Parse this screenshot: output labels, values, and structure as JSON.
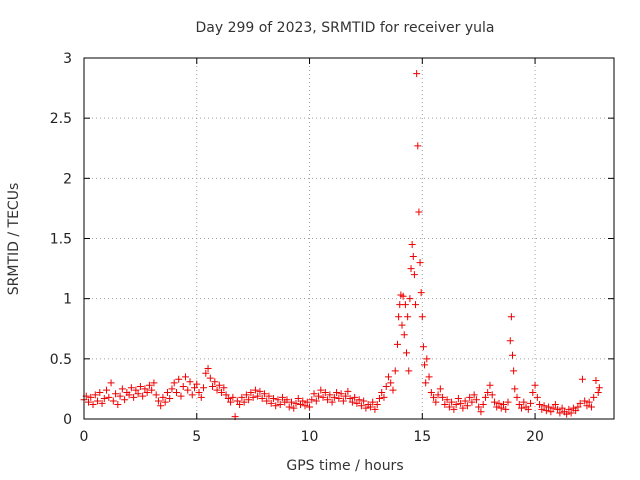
{
  "chart_data": {
    "type": "scatter",
    "title": "Day 299 of 2023, SRMTID for receiver yula",
    "xlabel": "GPS time / hours",
    "ylabel": "SRMTID / TECUs",
    "xlim": [
      0,
      23.5
    ],
    "ylim": [
      0,
      3
    ],
    "xticks": [
      "0",
      "5",
      "10",
      "15",
      "20"
    ],
    "xtick_values": [
      0,
      5,
      10,
      15,
      20
    ],
    "yticks": [
      "0",
      "0.5",
      "1",
      "1.5",
      "2",
      "2.5",
      "3"
    ],
    "ytick_values": [
      0,
      0.5,
      1,
      1.5,
      2,
      2.5,
      3
    ],
    "grid": true,
    "marker": "+",
    "colors": {
      "series": "#ee0000",
      "axis": "#000000",
      "grid": "#a0a0a0"
    },
    "series": [
      {
        "name": "SRMTID",
        "points": [
          [
            0.0,
            0.16
          ],
          [
            0.1,
            0.19
          ],
          [
            0.2,
            0.14
          ],
          [
            0.3,
            0.18
          ],
          [
            0.4,
            0.12
          ],
          [
            0.5,
            0.2
          ],
          [
            0.6,
            0.15
          ],
          [
            0.7,
            0.22
          ],
          [
            0.8,
            0.13
          ],
          [
            0.9,
            0.17
          ],
          [
            1.0,
            0.24
          ],
          [
            1.1,
            0.18
          ],
          [
            1.2,
            0.3
          ],
          [
            1.3,
            0.15
          ],
          [
            1.4,
            0.21
          ],
          [
            1.5,
            0.12
          ],
          [
            1.6,
            0.19
          ],
          [
            1.7,
            0.25
          ],
          [
            1.8,
            0.16
          ],
          [
            1.9,
            0.22
          ],
          [
            2.0,
            0.2
          ],
          [
            2.1,
            0.26
          ],
          [
            2.2,
            0.18
          ],
          [
            2.3,
            0.24
          ],
          [
            2.4,
            0.21
          ],
          [
            2.5,
            0.27
          ],
          [
            2.6,
            0.19
          ],
          [
            2.7,
            0.25
          ],
          [
            2.8,
            0.22
          ],
          [
            2.9,
            0.28
          ],
          [
            3.0,
            0.24
          ],
          [
            3.1,
            0.3
          ],
          [
            3.2,
            0.2
          ],
          [
            3.3,
            0.15
          ],
          [
            3.4,
            0.11
          ],
          [
            3.5,
            0.18
          ],
          [
            3.6,
            0.14
          ],
          [
            3.7,
            0.22
          ],
          [
            3.8,
            0.17
          ],
          [
            3.9,
            0.25
          ],
          [
            4.0,
            0.3
          ],
          [
            4.1,
            0.22
          ],
          [
            4.2,
            0.33
          ],
          [
            4.3,
            0.19
          ],
          [
            4.4,
            0.27
          ],
          [
            4.5,
            0.35
          ],
          [
            4.6,
            0.24
          ],
          [
            4.7,
            0.31
          ],
          [
            4.8,
            0.2
          ],
          [
            4.9,
            0.26
          ],
          [
            5.0,
            0.29
          ],
          [
            5.1,
            0.22
          ],
          [
            5.2,
            0.18
          ],
          [
            5.3,
            0.26
          ],
          [
            5.4,
            0.38
          ],
          [
            5.5,
            0.42
          ],
          [
            5.6,
            0.34
          ],
          [
            5.7,
            0.27
          ],
          [
            5.8,
            0.31
          ],
          [
            5.9,
            0.24
          ],
          [
            6.0,
            0.28
          ],
          [
            6.1,
            0.22
          ],
          [
            6.2,
            0.26
          ],
          [
            6.3,
            0.2
          ],
          [
            6.4,
            0.17
          ],
          [
            6.5,
            0.14
          ],
          [
            6.6,
            0.18
          ],
          [
            6.7,
            0.02
          ],
          [
            6.8,
            0.15
          ],
          [
            6.9,
            0.12
          ],
          [
            7.0,
            0.18
          ],
          [
            7.1,
            0.14
          ],
          [
            7.2,
            0.2
          ],
          [
            7.3,
            0.16
          ],
          [
            7.4,
            0.22
          ],
          [
            7.5,
            0.18
          ],
          [
            7.6,
            0.24
          ],
          [
            7.7,
            0.19
          ],
          [
            7.8,
            0.23
          ],
          [
            7.9,
            0.17
          ],
          [
            8.0,
            0.21
          ],
          [
            8.1,
            0.15
          ],
          [
            8.2,
            0.19
          ],
          [
            8.3,
            0.13
          ],
          [
            8.4,
            0.17
          ],
          [
            8.5,
            0.11
          ],
          [
            8.6,
            0.16
          ],
          [
            8.7,
            0.12
          ],
          [
            8.8,
            0.18
          ],
          [
            8.9,
            0.14
          ],
          [
            9.0,
            0.16
          ],
          [
            9.1,
            0.1
          ],
          [
            9.2,
            0.14
          ],
          [
            9.3,
            0.09
          ],
          [
            9.4,
            0.13
          ],
          [
            9.5,
            0.17
          ],
          [
            9.6,
            0.12
          ],
          [
            9.7,
            0.15
          ],
          [
            9.8,
            0.11
          ],
          [
            9.9,
            0.14
          ],
          [
            10.0,
            0.1
          ],
          [
            10.1,
            0.16
          ],
          [
            10.2,
            0.21
          ],
          [
            10.3,
            0.15
          ],
          [
            10.4,
            0.19
          ],
          [
            10.5,
            0.24
          ],
          [
            10.6,
            0.18
          ],
          [
            10.7,
            0.22
          ],
          [
            10.8,
            0.16
          ],
          [
            10.9,
            0.2
          ],
          [
            11.0,
            0.14
          ],
          [
            11.1,
            0.18
          ],
          [
            11.2,
            0.22
          ],
          [
            11.3,
            0.17
          ],
          [
            11.4,
            0.21
          ],
          [
            11.5,
            0.15
          ],
          [
            11.6,
            0.19
          ],
          [
            11.7,
            0.23
          ],
          [
            11.8,
            0.17
          ],
          [
            11.9,
            0.14
          ],
          [
            12.0,
            0.18
          ],
          [
            12.1,
            0.13
          ],
          [
            12.2,
            0.16
          ],
          [
            12.3,
            0.11
          ],
          [
            12.4,
            0.15
          ],
          [
            12.5,
            0.09
          ],
          [
            12.6,
            0.12
          ],
          [
            12.7,
            0.1
          ],
          [
            12.8,
            0.14
          ],
          [
            12.9,
            0.08
          ],
          [
            13.0,
            0.12
          ],
          [
            13.1,
            0.17
          ],
          [
            13.2,
            0.22
          ],
          [
            13.3,
            0.18
          ],
          [
            13.4,
            0.27
          ],
          [
            13.5,
            0.35
          ],
          [
            13.6,
            0.3
          ],
          [
            13.7,
            0.24
          ],
          [
            13.8,
            0.4
          ],
          [
            13.9,
            0.62
          ],
          [
            13.95,
            0.85
          ],
          [
            14.0,
            0.95
          ],
          [
            14.05,
            1.03
          ],
          [
            14.1,
            0.78
          ],
          [
            14.15,
            1.02
          ],
          [
            14.2,
            0.7
          ],
          [
            14.25,
            0.95
          ],
          [
            14.3,
            0.55
          ],
          [
            14.35,
            0.85
          ],
          [
            14.4,
            0.4
          ],
          [
            14.45,
            1.0
          ],
          [
            14.5,
            1.25
          ],
          [
            14.55,
            1.45
          ],
          [
            14.6,
            1.35
          ],
          [
            14.65,
            1.2
          ],
          [
            14.7,
            0.95
          ],
          [
            14.75,
            2.87
          ],
          [
            14.8,
            2.27
          ],
          [
            14.85,
            1.72
          ],
          [
            14.9,
            1.3
          ],
          [
            14.95,
            1.05
          ],
          [
            15.0,
            0.85
          ],
          [
            15.05,
            0.6
          ],
          [
            15.1,
            0.45
          ],
          [
            15.15,
            0.3
          ],
          [
            15.2,
            0.5
          ],
          [
            15.3,
            0.35
          ],
          [
            15.4,
            0.22
          ],
          [
            15.5,
            0.18
          ],
          [
            15.6,
            0.14
          ],
          [
            15.7,
            0.2
          ],
          [
            15.8,
            0.25
          ],
          [
            15.9,
            0.18
          ],
          [
            16.0,
            0.12
          ],
          [
            16.1,
            0.16
          ],
          [
            16.2,
            0.1
          ],
          [
            16.3,
            0.14
          ],
          [
            16.4,
            0.08
          ],
          [
            16.5,
            0.12
          ],
          [
            16.6,
            0.17
          ],
          [
            16.7,
            0.13
          ],
          [
            16.8,
            0.09
          ],
          [
            16.9,
            0.15
          ],
          [
            17.0,
            0.11
          ],
          [
            17.1,
            0.18
          ],
          [
            17.2,
            0.14
          ],
          [
            17.3,
            0.2
          ],
          [
            17.4,
            0.16
          ],
          [
            17.5,
            0.1
          ],
          [
            17.6,
            0.06
          ],
          [
            17.7,
            0.12
          ],
          [
            17.8,
            0.18
          ],
          [
            17.9,
            0.22
          ],
          [
            18.0,
            0.28
          ],
          [
            18.1,
            0.2
          ],
          [
            18.2,
            0.14
          ],
          [
            18.3,
            0.1
          ],
          [
            18.4,
            0.13
          ],
          [
            18.5,
            0.09
          ],
          [
            18.6,
            0.12
          ],
          [
            18.7,
            0.08
          ],
          [
            18.8,
            0.14
          ],
          [
            18.9,
            0.65
          ],
          [
            18.95,
            0.85
          ],
          [
            19.0,
            0.53
          ],
          [
            19.05,
            0.4
          ],
          [
            19.1,
            0.25
          ],
          [
            19.2,
            0.18
          ],
          [
            19.3,
            0.12
          ],
          [
            19.4,
            0.09
          ],
          [
            19.5,
            0.14
          ],
          [
            19.6,
            0.1
          ],
          [
            19.7,
            0.08
          ],
          [
            19.8,
            0.13
          ],
          [
            19.9,
            0.22
          ],
          [
            20.0,
            0.28
          ],
          [
            20.1,
            0.18
          ],
          [
            20.2,
            0.12
          ],
          [
            20.3,
            0.08
          ],
          [
            20.4,
            0.11
          ],
          [
            20.5,
            0.07
          ],
          [
            20.6,
            0.1
          ],
          [
            20.7,
            0.06
          ],
          [
            20.8,
            0.09
          ],
          [
            20.9,
            0.12
          ],
          [
            21.0,
            0.08
          ],
          [
            21.1,
            0.05
          ],
          [
            21.2,
            0.09
          ],
          [
            21.3,
            0.06
          ],
          [
            21.4,
            0.04
          ],
          [
            21.5,
            0.08
          ],
          [
            21.6,
            0.05
          ],
          [
            21.7,
            0.09
          ],
          [
            21.8,
            0.07
          ],
          [
            21.9,
            0.1
          ],
          [
            22.0,
            0.13
          ],
          [
            22.1,
            0.33
          ],
          [
            22.2,
            0.15
          ],
          [
            22.3,
            0.11
          ],
          [
            22.4,
            0.14
          ],
          [
            22.5,
            0.1
          ],
          [
            22.6,
            0.18
          ],
          [
            22.7,
            0.32
          ],
          [
            22.8,
            0.22
          ],
          [
            22.85,
            0.26
          ]
        ]
      }
    ]
  }
}
